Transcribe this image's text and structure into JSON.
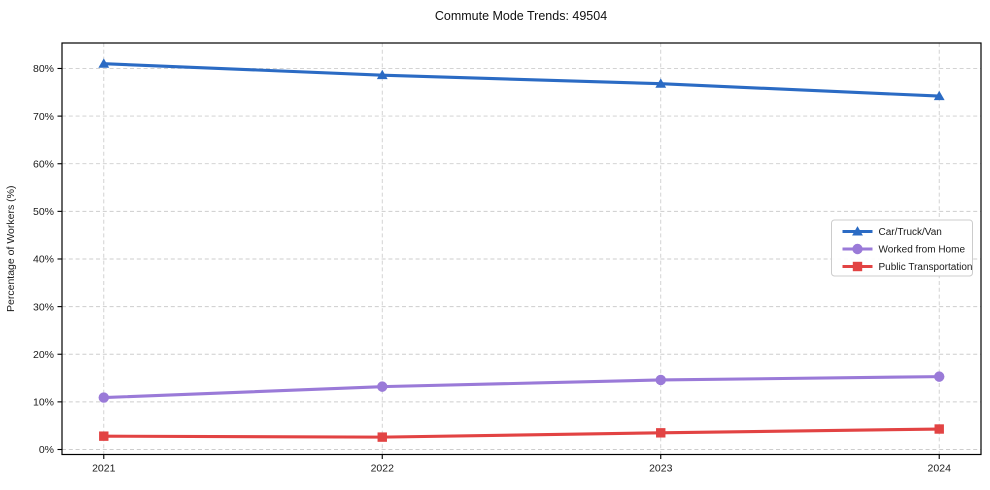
{
  "chart_data": {
    "type": "line",
    "title": "Commute Mode Trends: 49504",
    "xlabel": "",
    "ylabel": "Percentage of Workers (%)",
    "categories": [
      "2021",
      "2022",
      "2023",
      "2024"
    ],
    "series": [
      {
        "name": "Car/Truck/Van",
        "marker": "triangle",
        "color": "#2b6bc4",
        "values": [
          81.0,
          78.6,
          76.8,
          74.2
        ]
      },
      {
        "name": "Worked from Home",
        "marker": "circle",
        "color": "#9a7ad8",
        "values": [
          10.9,
          13.2,
          14.6,
          15.3
        ]
      },
      {
        "name": "Public Transportation",
        "marker": "square",
        "color": "#e24343",
        "values": [
          2.8,
          2.6,
          3.5,
          4.3
        ]
      }
    ],
    "yticks": [
      "0%",
      "10%",
      "20%",
      "30%",
      "40%",
      "50%",
      "60%",
      "70%",
      "80%"
    ],
    "ytick_values": [
      0,
      10,
      20,
      30,
      40,
      50,
      60,
      70,
      80
    ],
    "ylim": [
      -1.05,
      85.35
    ],
    "grid": true,
    "grid_style": "dashed",
    "legend_position": "center-right",
    "colors": {
      "grid": "#cdcdcd",
      "frame": "#000000",
      "text": "#1a1a1a",
      "background": "#ffffff",
      "legend_border": "#cccccc"
    }
  }
}
